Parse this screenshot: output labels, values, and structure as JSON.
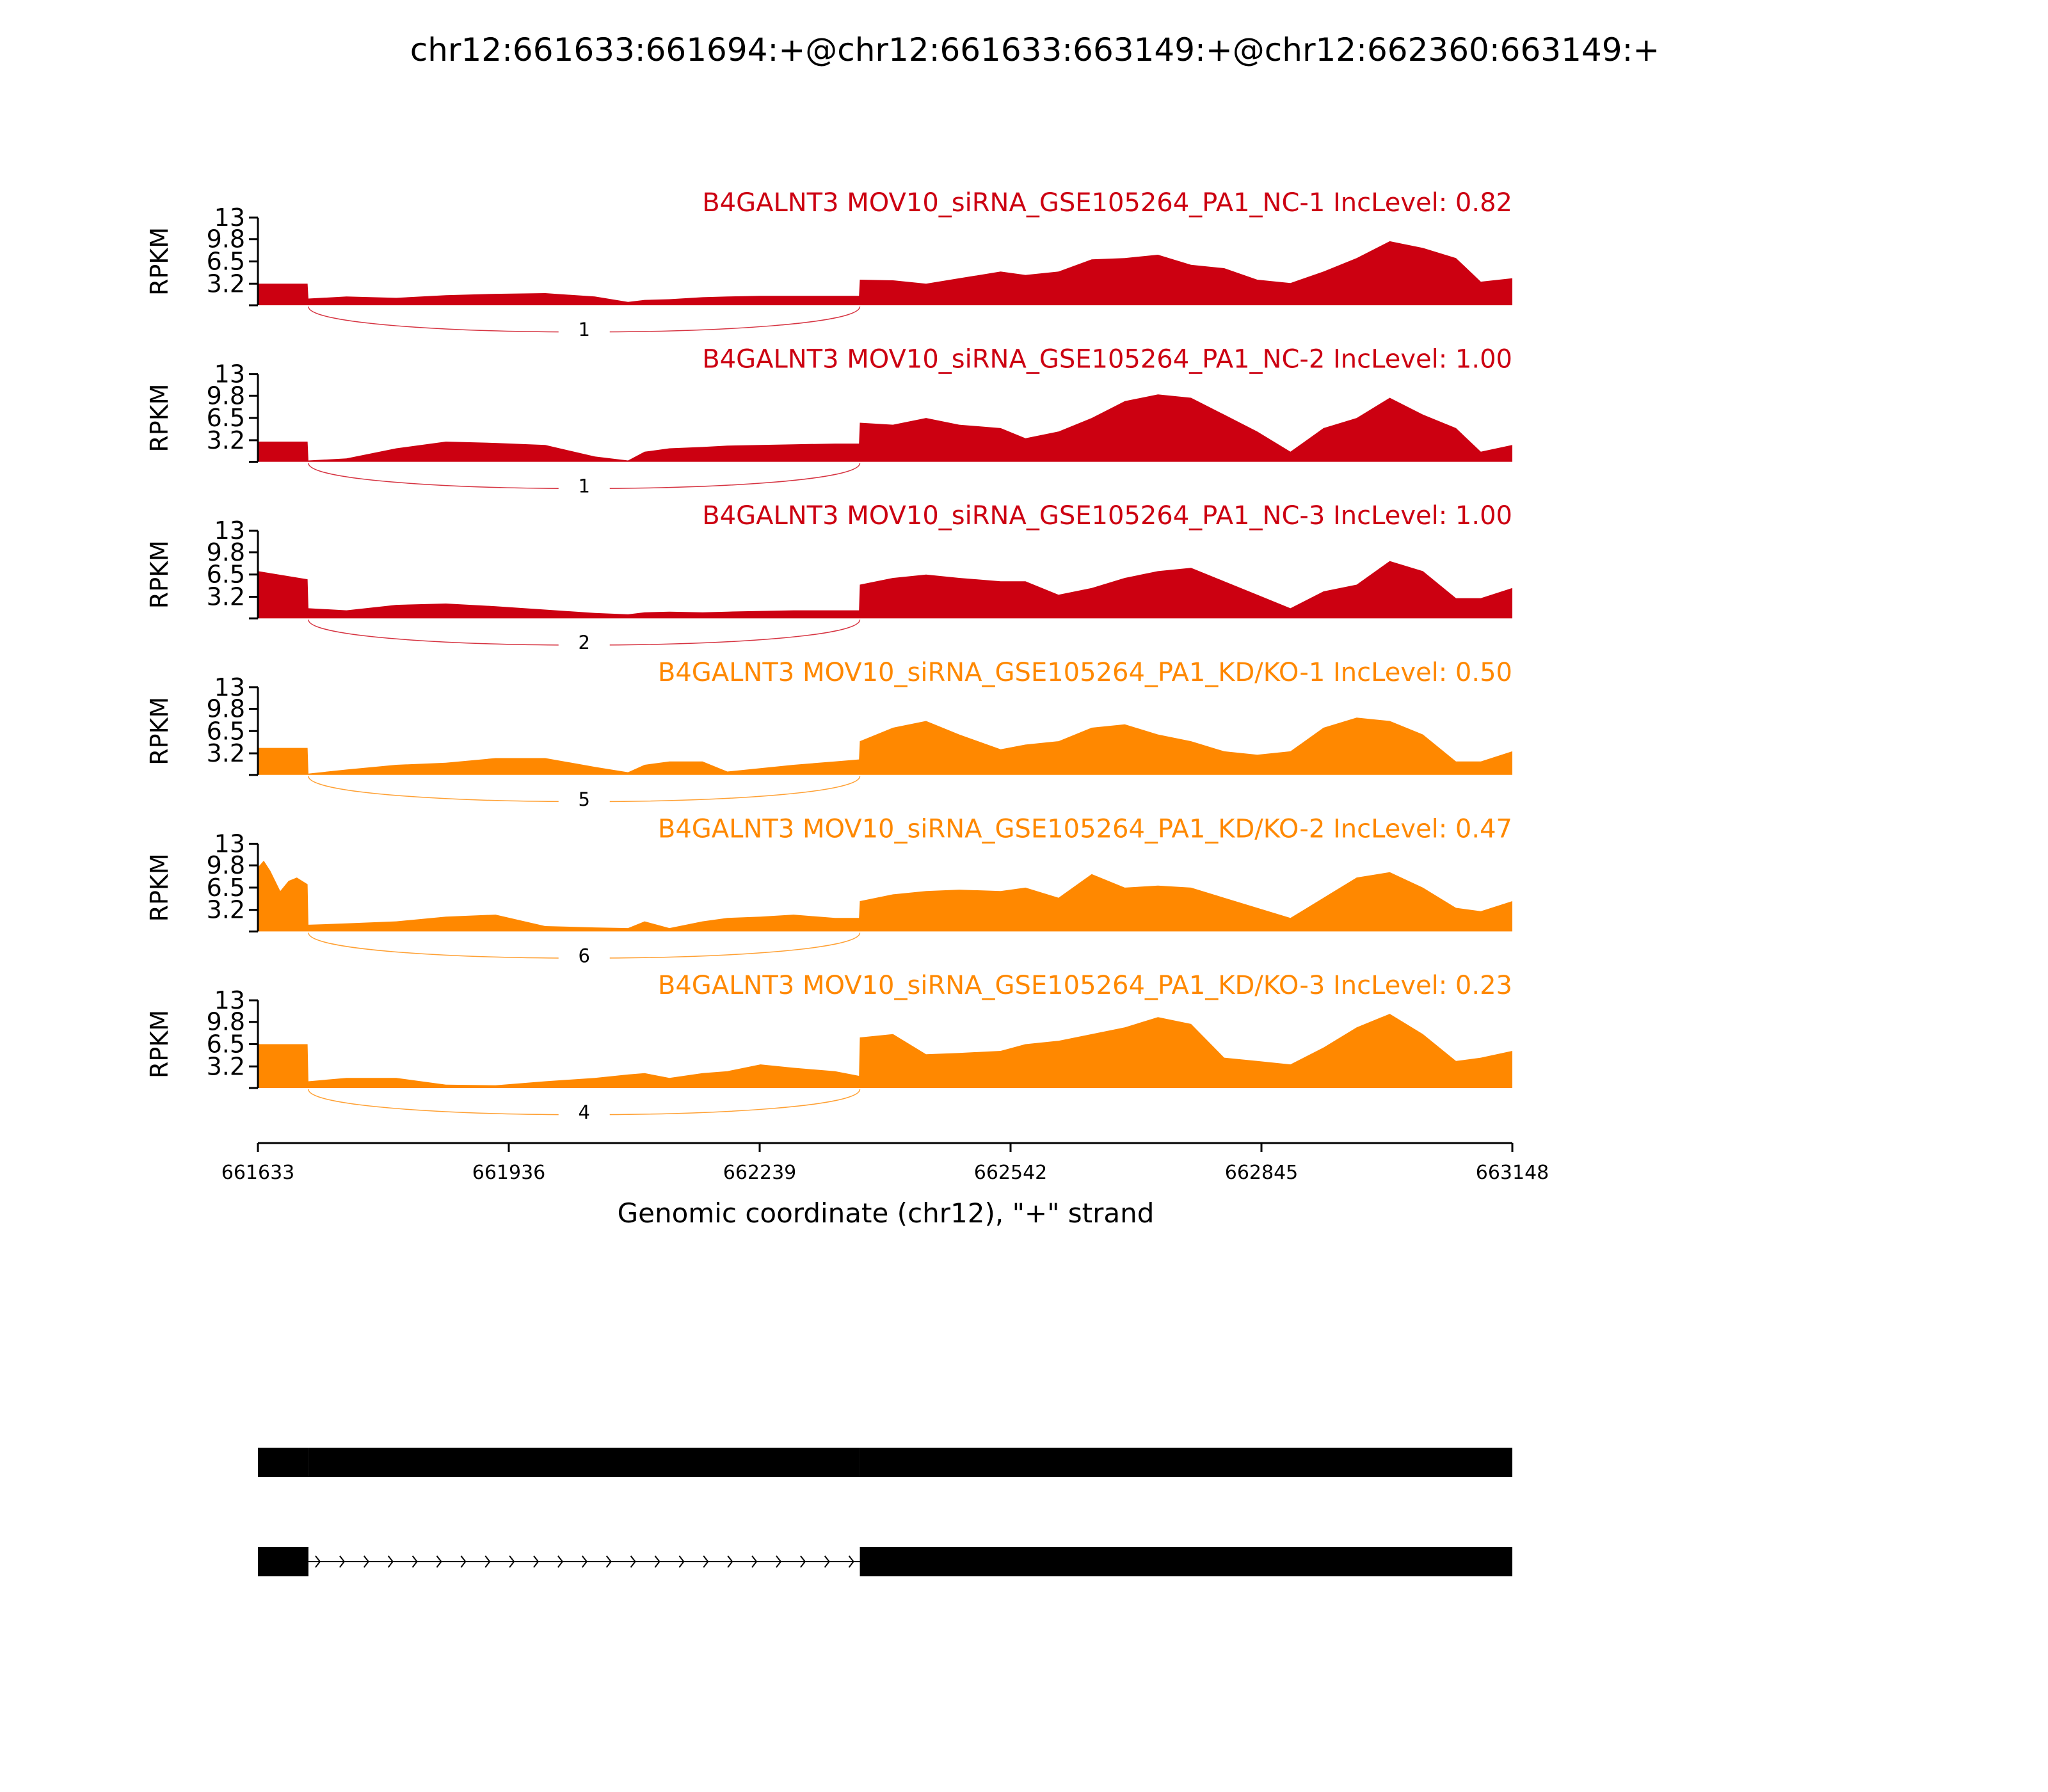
{
  "figure": {
    "title": "chr12:661633:661694:+@chr12:661633:663149:+@chr12:662360:663149:+"
  },
  "chart_data": {
    "type": "area",
    "title": "chr12:661633:661694:+@chr12:661633:663149:+@chr12:662360:663149:+",
    "xlabel": "Genomic coordinate (chr12), \"+\" strand",
    "ylabel": "RPKM",
    "xlim": [
      661633,
      663148
    ],
    "ylim": [
      0,
      13
    ],
    "x_ticks": [
      661633,
      661936,
      662239,
      662542,
      662845,
      663148
    ],
    "x_tick_labels": [
      "661633",
      "661936",
      "662239",
      "662542",
      "662845",
      "663148"
    ],
    "y_ticks": [
      3.2,
      6.5,
      9.8,
      13
    ],
    "y_tick_labels": [
      "3.2",
      "6.5",
      "9.8",
      "13"
    ],
    "colors": {
      "NC": "#cc0011",
      "KD": "#ff8800"
    },
    "exons": {
      "upstream": [
        661633,
        661694
      ],
      "skipped_region": [
        661694,
        662360
      ],
      "downstream": [
        662360,
        663148
      ]
    },
    "series": [
      {
        "name": "B4GALNT3 MOV10_siRNA_GSE105264_PA1_NC-1 IncLevel: 0.82",
        "group": "NC",
        "junction_count": "1",
        "x": [
          661633,
          661693,
          661694,
          661740,
          661800,
          661860,
          661920,
          661980,
          662040,
          662080,
          662100,
          662130,
          662170,
          662200,
          662240,
          662280,
          662330,
          662359,
          662360,
          662400,
          662440,
          662480,
          662530,
          662560,
          662600,
          662640,
          662680,
          662720,
          662760,
          662800,
          662840,
          662880,
          662920,
          662960,
          663000,
          663040,
          663080,
          663110,
          663148
        ],
        "values": [
          3.2,
          3.2,
          1.0,
          1.3,
          1.1,
          1.5,
          1.7,
          1.8,
          1.3,
          0.5,
          0.8,
          0.9,
          1.2,
          1.3,
          1.4,
          1.4,
          1.4,
          1.4,
          3.8,
          3.7,
          3.2,
          4.0,
          5.0,
          4.5,
          5.0,
          6.8,
          7.0,
          7.5,
          6.0,
          5.5,
          3.8,
          3.3,
          5.0,
          7.0,
          9.5,
          8.5,
          7.0,
          3.5,
          4.0
        ]
      },
      {
        "name": "B4GALNT3 MOV10_siRNA_GSE105264_PA1_NC-2 IncLevel: 1.00",
        "group": "NC",
        "junction_count": "1",
        "x": [
          661633,
          661693,
          661694,
          661740,
          661800,
          661860,
          661920,
          661980,
          662040,
          662080,
          662100,
          662130,
          662170,
          662200,
          662240,
          662280,
          662330,
          662359,
          662360,
          662400,
          662440,
          662480,
          662530,
          662560,
          662600,
          662640,
          662680,
          662720,
          662760,
          662800,
          662840,
          662880,
          662920,
          662960,
          663000,
          663040,
          663080,
          663110,
          663148
        ],
        "values": [
          3.0,
          3.0,
          0.2,
          0.5,
          2.0,
          3.0,
          2.8,
          2.5,
          0.8,
          0.2,
          1.5,
          2.0,
          2.2,
          2.4,
          2.5,
          2.6,
          2.7,
          2.7,
          5.8,
          5.5,
          6.5,
          5.5,
          5.0,
          3.5,
          4.5,
          6.5,
          9.0,
          10.0,
          9.5,
          7.0,
          4.5,
          1.5,
          5.0,
          6.5,
          9.5,
          7.0,
          5.0,
          1.5,
          2.5
        ]
      },
      {
        "name": "B4GALNT3 MOV10_siRNA_GSE105264_PA1_NC-3 IncLevel: 1.00",
        "group": "NC",
        "junction_count": "2",
        "x": [
          661633,
          661693,
          661694,
          661740,
          661800,
          661860,
          661920,
          661980,
          662040,
          662080,
          662100,
          662130,
          662170,
          662200,
          662240,
          662280,
          662330,
          662359,
          662360,
          662400,
          662440,
          662480,
          662530,
          662560,
          662600,
          662640,
          662680,
          662720,
          662760,
          662800,
          662840,
          662880,
          662920,
          662960,
          663000,
          663040,
          663080,
          663110,
          663148
        ],
        "values": [
          7.0,
          5.8,
          1.5,
          1.2,
          2.0,
          2.2,
          1.8,
          1.3,
          0.8,
          0.6,
          0.9,
          1.0,
          0.9,
          1.0,
          1.1,
          1.2,
          1.2,
          1.2,
          5.0,
          6.0,
          6.5,
          6.0,
          5.5,
          5.5,
          3.5,
          4.5,
          6.0,
          7.0,
          7.5,
          5.5,
          3.5,
          1.5,
          4.0,
          5.0,
          8.5,
          7.0,
          3.0,
          3.0,
          4.5
        ]
      },
      {
        "name": "B4GALNT3 MOV10_siRNA_GSE105264_PA1_KD/KO-1 IncLevel: 0.50",
        "group": "KD",
        "junction_count": "5",
        "x": [
          661633,
          661693,
          661694,
          661740,
          661800,
          661860,
          661920,
          661980,
          662040,
          662080,
          662100,
          662130,
          662170,
          662200,
          662240,
          662280,
          662330,
          662359,
          662360,
          662400,
          662440,
          662480,
          662530,
          662560,
          662600,
          662640,
          662680,
          662720,
          662760,
          662800,
          662840,
          662880,
          662920,
          662960,
          663000,
          663040,
          663080,
          663110,
          663148
        ],
        "values": [
          4.0,
          4.0,
          0.2,
          0.8,
          1.5,
          1.8,
          2.5,
          2.5,
          1.2,
          0.4,
          1.5,
          2.0,
          2.0,
          0.5,
          1.0,
          1.5,
          2.0,
          2.3,
          5.0,
          7.0,
          8.0,
          6.0,
          3.8,
          4.5,
          5.0,
          7.0,
          7.5,
          6.0,
          5.0,
          3.5,
          3.0,
          3.5,
          7.0,
          8.5,
          8.0,
          6.0,
          2.0,
          2.0,
          3.5
        ]
      },
      {
        "name": "B4GALNT3 MOV10_siRNA_GSE105264_PA1_KD/KO-2 IncLevel: 0.47",
        "group": "KD",
        "junction_count": "6",
        "x": [
          661633,
          661640,
          661648,
          661660,
          661670,
          661680,
          661693,
          661694,
          661740,
          661800,
          661860,
          661920,
          661980,
          662040,
          662080,
          662100,
          662130,
          662170,
          662200,
          662240,
          662280,
          662330,
          662359,
          662360,
          662400,
          662440,
          662480,
          662530,
          662560,
          662600,
          662640,
          662680,
          662720,
          662760,
          662800,
          662840,
          662880,
          662920,
          662960,
          663000,
          663040,
          663080,
          663110,
          663148
        ],
        "values": [
          9.5,
          10.5,
          9.0,
          6.0,
          7.5,
          8.0,
          7.0,
          1.0,
          1.2,
          1.5,
          2.2,
          2.5,
          0.8,
          0.6,
          0.5,
          1.5,
          0.5,
          1.5,
          2.0,
          2.2,
          2.5,
          2.0,
          2.0,
          4.5,
          5.5,
          6.0,
          6.2,
          6.0,
          6.5,
          5.0,
          8.5,
          6.5,
          6.8,
          6.5,
          5.0,
          3.5,
          2.0,
          5.0,
          8.0,
          8.8,
          6.5,
          3.5,
          3.0,
          4.5
        ]
      },
      {
        "name": "B4GALNT3 MOV10_siRNA_GSE105264_PA1_KD/KO-3 IncLevel: 0.23",
        "group": "KD",
        "junction_count": "4",
        "x": [
          661633,
          661693,
          661694,
          661740,
          661800,
          661860,
          661920,
          661980,
          662040,
          662080,
          662100,
          662130,
          662170,
          662200,
          662240,
          662280,
          662330,
          662359,
          662360,
          662400,
          662440,
          662480,
          662530,
          662560,
          662600,
          662640,
          662680,
          662720,
          662760,
          662800,
          662840,
          662880,
          662920,
          662960,
          663000,
          663040,
          663080,
          663110,
          663148
        ],
        "values": [
          6.5,
          6.5,
          1.0,
          1.5,
          1.5,
          0.5,
          0.4,
          1.0,
          1.5,
          2.0,
          2.2,
          1.5,
          2.2,
          2.5,
          3.5,
          3.0,
          2.5,
          1.8,
          7.5,
          8.0,
          5.0,
          5.2,
          5.5,
          6.5,
          7.0,
          8.0,
          9.0,
          10.5,
          9.5,
          4.5,
          4.0,
          3.5,
          6.0,
          9.0,
          11.0,
          8.0,
          4.0,
          4.5,
          5.5
        ]
      }
    ]
  }
}
